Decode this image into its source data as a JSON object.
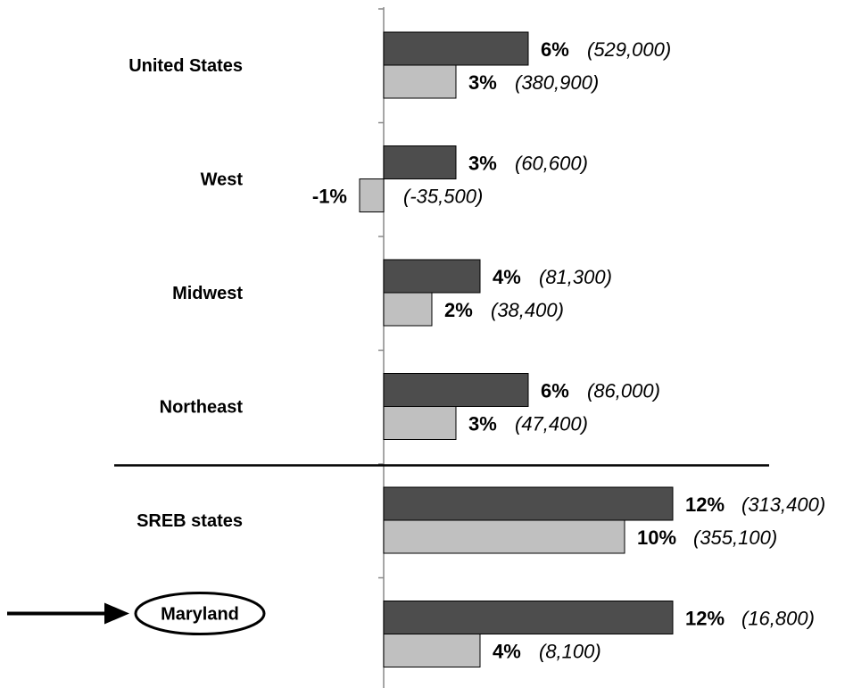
{
  "chart_data": {
    "type": "bar",
    "orientation": "horizontal",
    "categories": [
      "United States",
      "West",
      "Midwest",
      "Northeast",
      "SREB states",
      "Maryland"
    ],
    "highlight_category": "Maryland",
    "series": [
      {
        "color": "#4d4d4d",
        "values": [
          6,
          3,
          4,
          6,
          12,
          12
        ],
        "counts": [
          "(529,000)",
          "(60,600)",
          "(81,300)",
          "(86,000)",
          "(313,400)",
          "(16,800)"
        ]
      },
      {
        "color": "#c0c0c0",
        "values": [
          3,
          -1,
          2,
          3,
          10,
          4
        ],
        "counts": [
          "(380,900)",
          "(-35,500)",
          "(38,400)",
          "(47,400)",
          "(355,100)",
          "(8,100)"
        ]
      }
    ],
    "value_suffix": "%",
    "separator_after_index": 3,
    "grid": false,
    "xlim": [
      -1,
      12
    ]
  }
}
